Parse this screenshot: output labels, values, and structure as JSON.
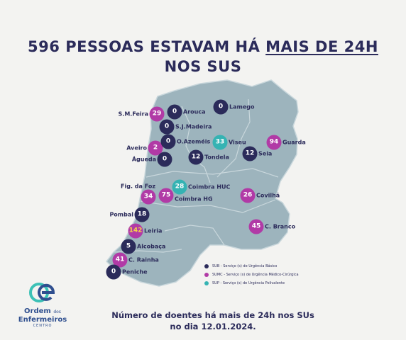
{
  "headline": {
    "line1_prefix": "596 PESSOAS ESTAVAM HÁ ",
    "line1_underlined": "MAIS DE 24H",
    "line2": "NOS SUS"
  },
  "colors": {
    "SUB": "#2b2b5a",
    "SUMC": "#b13aa6",
    "SUP": "#35b3b3",
    "map": "#9db4bd",
    "background": "#f3f3f1"
  },
  "hospitals": [
    {
      "id": "sm-feira",
      "label": "S.M.Feira",
      "value": "29",
      "type": "SUMC"
    },
    {
      "id": "arouca",
      "label": "Arouca",
      "value": "0",
      "type": "SUB"
    },
    {
      "id": "lamego",
      "label": "Lamego",
      "value": "0",
      "type": "SUB"
    },
    {
      "id": "sj-madeira",
      "label": "S.J.Madeira",
      "value": "0",
      "type": "SUB"
    },
    {
      "id": "aveiro",
      "label": "Aveiro",
      "value": "2",
      "type": "SUMC"
    },
    {
      "id": "o-azemeis",
      "label": "O.Azeméis",
      "value": "0",
      "type": "SUB"
    },
    {
      "id": "viseu",
      "label": "Viseu",
      "value": "33",
      "type": "SUP"
    },
    {
      "id": "guarda",
      "label": "Guarda",
      "value": "94",
      "type": "SUMC"
    },
    {
      "id": "agueda",
      "label": "Águeda",
      "value": "0",
      "type": "SUB"
    },
    {
      "id": "tondela",
      "label": "Tondela",
      "value": "12",
      "type": "SUB"
    },
    {
      "id": "seia",
      "label": "Seia",
      "value": "12",
      "type": "SUB"
    },
    {
      "id": "coimbra-huc",
      "label": "Coimbra HUC",
      "value": "28",
      "type": "SUP"
    },
    {
      "id": "fig-da-foz",
      "label": "Fig. da Foz",
      "value": "34",
      "type": "SUMC"
    },
    {
      "id": "coimbra-hg",
      "label": "Coimbra HG",
      "value": "75",
      "type": "SUMC"
    },
    {
      "id": "covilha",
      "label": "Covilhã",
      "value": "26",
      "type": "SUMC"
    },
    {
      "id": "pombal",
      "label": "Pombal",
      "value": "18",
      "type": "SUB"
    },
    {
      "id": "leiria",
      "label": "Leiria",
      "value": "142",
      "type": "SUMC"
    },
    {
      "id": "c-branco",
      "label": "C. Branco",
      "value": "45",
      "type": "SUMC"
    },
    {
      "id": "alcobaca",
      "label": "Alcobaça",
      "value": "5",
      "type": "SUB"
    },
    {
      "id": "c-rainha",
      "label": "C. Rainha",
      "value": "41",
      "type": "SUMC"
    },
    {
      "id": "peniche",
      "label": "Peniche",
      "value": "0",
      "type": "SUB"
    }
  ],
  "legend": [
    {
      "type": "SUB",
      "text": "SUB - Serviço (s) de Urgência Básico"
    },
    {
      "type": "SUMC",
      "text": "SUMC - Serviço (s) de Urgência Médico-Cirúrgica"
    },
    {
      "type": "SUP",
      "text": "SUP - Serviço (s) de Urgência Polivalente"
    }
  ],
  "footer": {
    "line1": "Número de doentes há mais de 24h nos SUs",
    "line2": "no dia 12.01.2024."
  },
  "logo": {
    "line1": "Ordem",
    "line1_small": "dos",
    "line2": "Enfermeiros",
    "line3": "CENTRO"
  }
}
